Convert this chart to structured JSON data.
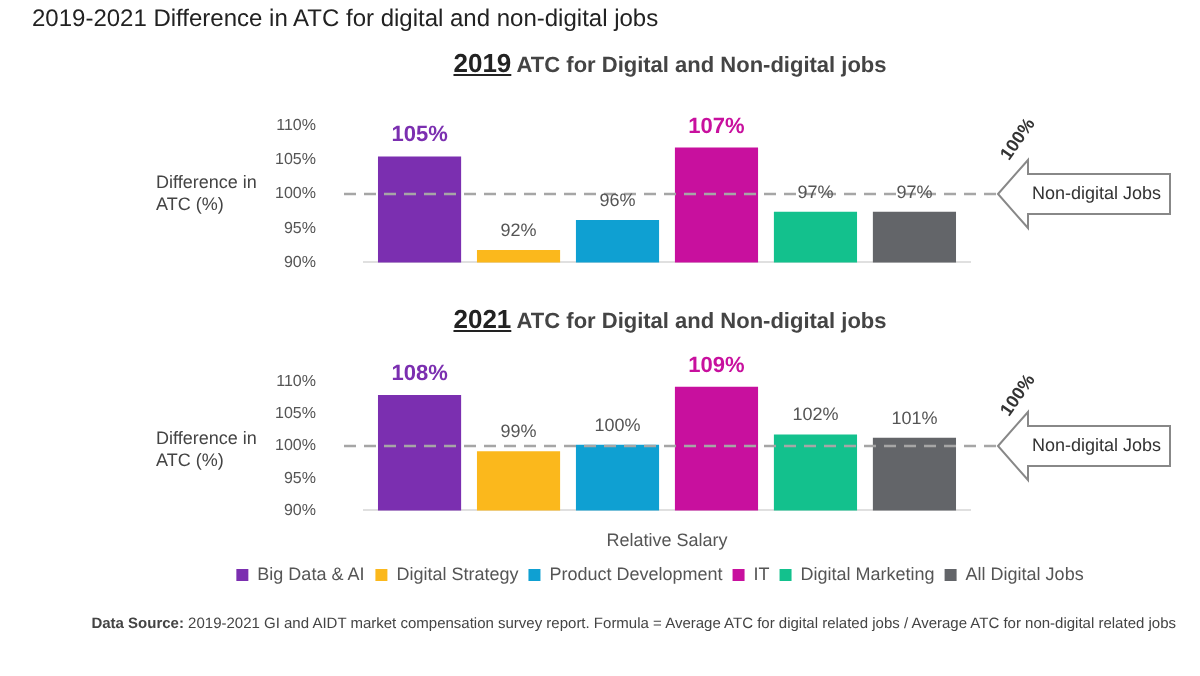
{
  "chart_data": [
    {
      "type": "bar",
      "title": "2019-2021 Difference in ATC for digital and non-digital jobs",
      "subtitle": "2019 ATC for Digital and Non-digital jobs",
      "ylabel": "Difference in ATC (%)",
      "categories": [
        null
      ],
      "series": [
        {
          "color": "#7b2fb0",
          "values": [
            105.5
          ],
          "value_labels": [
            "105%"
          ]
        },
        {
          "color": "#fbb81c",
          "values": [
            91.8
          ],
          "value_labels": [
            "92%"
          ]
        },
        {
          "color": "#0fa0d2",
          "values": [
            96.2
          ],
          "value_labels": [
            "96%"
          ]
        },
        {
          "color": "#c8109e",
          "values": [
            106.8
          ],
          "value_labels": [
            "107%"
          ]
        },
        {
          "color": "#13c18d",
          "values": [
            97.4
          ],
          "value_labels": [
            "97%"
          ]
        },
        {
          "color": "#636569",
          "values": [
            97.4
          ],
          "value_labels": [
            "97%"
          ]
        }
      ],
      "ylim": [
        90,
        110
      ],
      "yticks": [
        {
          "value": 90,
          "label": "90%"
        },
        {
          "value": 95,
          "label": "95%"
        },
        {
          "value": 100,
          "label": "100%"
        },
        {
          "value": 105,
          "label": "105%"
        },
        {
          "value": 110,
          "label": "110%"
        }
      ],
      "ref_lines": [
        {
          "axis": "y",
          "value": 100,
          "label": "Non-digital Jobs",
          "line_style": "dashed",
          "color": "#a6a6a6"
        }
      ],
      "annotations": [
        "100%"
      ],
      "tick_labels": "y",
      "grid": false,
      "legend": false
    },
    {
      "type": "bar",
      "title": "2021 ATC for Digital and Non-digital jobs",
      "ylabel": "Difference in ATC (%)",
      "xlabel": "Relative Salary",
      "categories": [
        null
      ],
      "series": [
        {
          "name": "Big Data & AI",
          "color": "#7b2fb0",
          "values": [
            107.9
          ],
          "value_labels": [
            "108%"
          ]
        },
        {
          "name": "Digital Strategy",
          "color": "#fbb81c",
          "values": [
            99.2
          ],
          "value_labels": [
            "99%"
          ]
        },
        {
          "name": "Product Development",
          "color": "#0fa0d2",
          "values": [
            100.2
          ],
          "value_labels": [
            "100%"
          ]
        },
        {
          "name": "IT",
          "color": "#c8109e",
          "values": [
            109.2
          ],
          "value_labels": [
            "109%"
          ]
        },
        {
          "name": "Digital Marketing",
          "color": "#13c18d",
          "values": [
            101.8
          ],
          "value_labels": [
            "102%"
          ]
        },
        {
          "name": "All Digital Jobs",
          "color": "#636569",
          "values": [
            101.3
          ],
          "value_labels": [
            "101%"
          ]
        }
      ],
      "ylim": [
        90,
        110
      ],
      "yticks": [
        {
          "value": 90,
          "label": "90%"
        },
        {
          "value": 95,
          "label": "95%"
        },
        {
          "value": 100,
          "label": "100%"
        },
        {
          "value": 105,
          "label": "105%"
        },
        {
          "value": 110,
          "label": "110%"
        }
      ],
      "ref_lines": [
        {
          "axis": "y",
          "value": 100,
          "label": "Non-digital Jobs",
          "line_style": "dashed",
          "color": "#a6a6a6"
        }
      ],
      "annotations": [
        "100%",
        "Data Source: 2019-2021 GI and AIDT market compensation survey report. Formula = Average ATC for digital related jobs / Average ATC for non-digital related jobs"
      ],
      "tick_labels": "y",
      "grid": false,
      "legend": "bottom"
    }
  ]
}
